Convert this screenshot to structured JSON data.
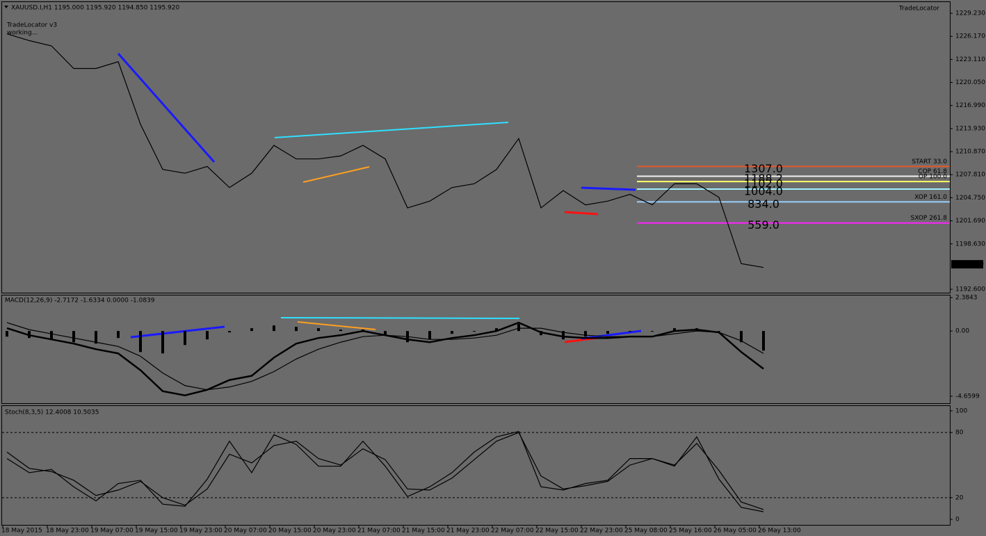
{
  "chart_data": [
    {
      "type": "line",
      "title": "XAUUSD.I,H1 1195.000 1195.920 1194.850 1195.920",
      "annotations": [
        "TradeLocator v3",
        "working...",
        "TradeLocator"
      ],
      "last_price": {
        "value": 1195.92,
        "label": "1195.920"
      },
      "ylim": [
        1192.15,
        1230.71
      ],
      "yticks": [
        {
          "value": 1229.23,
          "label": "1229.230"
        },
        {
          "value": 1226.17,
          "label": "1226.170"
        },
        {
          "value": 1223.11,
          "label": "1223.110"
        },
        {
          "value": 1220.05,
          "label": "1220.050"
        },
        {
          "value": 1216.99,
          "label": "1216.990"
        },
        {
          "value": 1213.93,
          "label": "1213.930"
        },
        {
          "value": 1210.87,
          "label": "1210.870"
        },
        {
          "value": 1207.81,
          "label": "1207.810"
        },
        {
          "value": 1204.75,
          "label": "1204.750"
        },
        {
          "value": 1201.69,
          "label": "1201.690"
        },
        {
          "value": 1198.63,
          "label": "1198.630"
        },
        {
          "value": 1192.6,
          "label": "1192.600"
        }
      ],
      "series": [
        {
          "type": "line",
          "color": "#000000",
          "values": [
            1226.5,
            1225.6,
            1224.9,
            1221.9,
            1221.9,
            1222.8,
            1214.5,
            1208.5,
            1208.0,
            1208.9,
            1206.1,
            1208.0,
            1211.7,
            1209.9,
            1209.9,
            1210.3,
            1211.7,
            1209.9,
            1203.4,
            1204.3,
            1206.1,
            1206.6,
            1208.5,
            1212.6,
            1203.4,
            1205.7,
            1203.8,
            1204.3,
            1205.2,
            1203.8,
            1206.6,
            1206.6,
            1204.8,
            1196.0,
            1195.5
          ]
        }
      ],
      "levels": [
        {
          "value": 1208.9,
          "color": "#e8572a",
          "label": "1307.0",
          "tag": "START 33.0"
        },
        {
          "value": 1207.6,
          "color": "#f0f0f0",
          "label": "1188.2",
          "tag": "COP 61.8"
        },
        {
          "value": 1206.9,
          "color": "#ffff66",
          "label": "1102.0",
          "tag": "OP 100.0"
        },
        {
          "value": 1205.9,
          "color": "#9ff0ff",
          "label": "1004.0"
        },
        {
          "value": 1204.2,
          "color": "#9ad0ff",
          "label": "834.0",
          "tag": "XOP 161.0"
        },
        {
          "value": 1201.4,
          "color": "#ff22ff",
          "label": "559.0",
          "tag": "SXOP 261.8"
        }
      ]
    },
    {
      "type": "line",
      "title": "MACD(12,26,9) -2.7172 -1.6334 0.0000 -1.0839",
      "ylim": [
        -5.16,
        2.54
      ],
      "yticks": [
        2.3843,
        {
          "value": 0,
          "label": "0.00"
        },
        -4.6599
      ],
      "series": [
        {
          "type": "bar",
          "color": "#000000",
          "values": [
            -0.4,
            -0.5,
            -0.6,
            -0.8,
            -0.9,
            -0.5,
            -1.5,
            -1.6,
            -1.0,
            -0.6,
            -0.1,
            0.2,
            0.4,
            0.3,
            0.2,
            0.1,
            0.1,
            -0.3,
            -0.8,
            -0.6,
            -0.2,
            0.0,
            0.2,
            0.5,
            -0.3,
            -0.6,
            -0.4,
            -0.2,
            0.0,
            0.0,
            0.2,
            0.2,
            0.0,
            -0.8,
            -1.4
          ]
        },
        {
          "type": "line",
          "color": "#000000",
          "values": [
            0.2,
            -0.3,
            -0.6,
            -0.9,
            -1.3,
            -1.6,
            -2.8,
            -4.3,
            -4.6,
            -4.2,
            -3.5,
            -3.2,
            -1.9,
            -0.9,
            -0.5,
            -0.3,
            0.0,
            -0.3,
            -0.6,
            -0.8,
            -0.5,
            -0.3,
            0.0,
            0.6,
            -0.1,
            -0.4,
            -0.5,
            -0.5,
            -0.4,
            -0.4,
            0.0,
            0.1,
            -0.1,
            -1.5,
            -2.7
          ]
        },
        {
          "type": "line",
          "color": "#000000",
          "values": [
            0.6,
            0.1,
            -0.2,
            -0.5,
            -0.8,
            -1.1,
            -1.8,
            -3.0,
            -3.9,
            -4.2,
            -4.0,
            -3.6,
            -2.9,
            -2.0,
            -1.3,
            -0.8,
            -0.4,
            -0.3,
            -0.4,
            -0.6,
            -0.6,
            -0.5,
            -0.3,
            0.2,
            0.2,
            -0.1,
            -0.3,
            -0.4,
            -0.4,
            -0.4,
            -0.2,
            0.0,
            -0.1,
            -0.7,
            -1.6
          ]
        }
      ]
    },
    {
      "type": "line",
      "title": "Stoch(8,3,5) 12.4008 10.5035",
      "ylim": [
        -5.1,
        103.8
      ],
      "yticks": [
        0,
        20,
        80,
        100
      ],
      "levels": [
        80,
        20
      ],
      "categories": [
        "18 May 2015",
        null,
        "18 May 23:00",
        null,
        "19 May 07:00",
        null,
        "19 May 15:00",
        null,
        "19 May 23:00",
        null,
        "20 May 07:00",
        null,
        "20 May 15:00",
        null,
        "20 May 23:00",
        null,
        "21 May 07:00",
        null,
        "21 May 15:00",
        null,
        "21 May 23:00",
        null,
        "22 May 07:00",
        null,
        "22 May 15:00",
        null,
        "22 May 23:00",
        null,
        "25 May 08:00",
        null,
        "25 May 16:00",
        null,
        "26 May 05:00",
        null,
        "26 May 13:00"
      ],
      "series": [
        {
          "type": "line",
          "color": "#000000",
          "values": [
            56,
            43,
            46,
            30,
            17,
            33,
            36,
            14,
            12,
            37,
            72,
            43,
            78,
            69,
            49,
            49,
            72,
            49,
            21,
            30,
            43,
            62,
            76,
            81,
            30,
            27,
            33,
            36,
            56,
            56,
            49,
            76,
            37,
            11,
            7
          ]
        },
        {
          "type": "line",
          "color": "#000000",
          "values": [
            62,
            47,
            44,
            36,
            22,
            27,
            35,
            20,
            13,
            28,
            60,
            52,
            68,
            72,
            56,
            50,
            65,
            55,
            28,
            27,
            38,
            55,
            72,
            80,
            40,
            28,
            31,
            35,
            50,
            56,
            50,
            70,
            45,
            16,
            9
          ]
        }
      ]
    }
  ]
}
